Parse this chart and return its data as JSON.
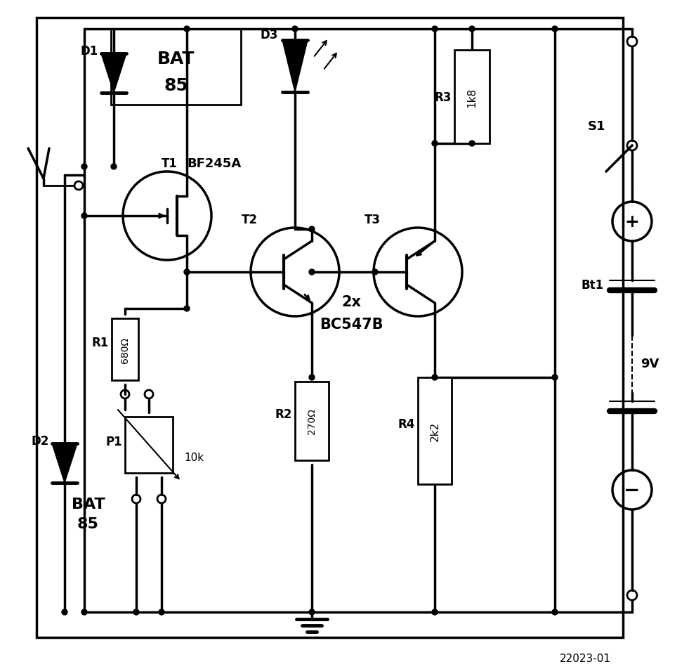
{
  "ref_number": "22023-01",
  "background_color": "#ffffff",
  "components": {
    "D1": {
      "label": "D1",
      "part": "BAT\n85"
    },
    "D2": {
      "label": "D2",
      "part": "BAT\n85"
    },
    "D3": {
      "label": "D3"
    },
    "T1": {
      "label": "T1",
      "part": "BF245A"
    },
    "T2": {
      "label": "T2"
    },
    "T3": {
      "label": "T3"
    },
    "label_2x": "2x\nBC547B",
    "R1": {
      "label": "R1",
      "value": "680Ω"
    },
    "R2": {
      "label": "R2",
      "value": "270Ω"
    },
    "R3": {
      "label": "R3",
      "value": "1k8"
    },
    "R4": {
      "label": "R4",
      "value": "2k2"
    },
    "P1": {
      "label": "P1",
      "value": "10k"
    },
    "S1": {
      "label": "S1"
    },
    "Bt1": {
      "label": "Bt1",
      "value": "9V"
    }
  }
}
